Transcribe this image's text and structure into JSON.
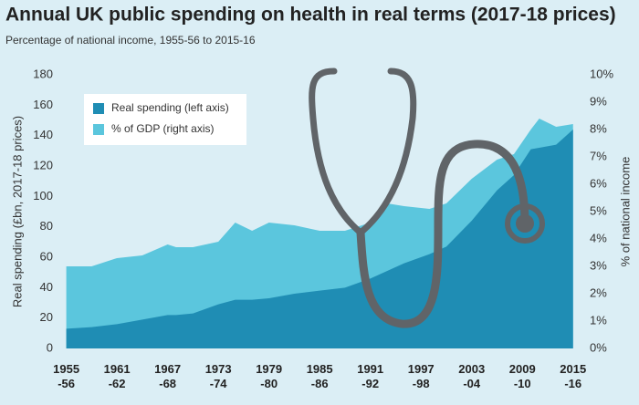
{
  "chart_data": {
    "type": "area",
    "title": "Annual UK public spending on health in real terms (2017-18 prices)",
    "subtitle": "Percentage of national income, 1955-56 to 2015-16",
    "y_label": "Real spending (£bn, 2017-18 prices)",
    "y2_label": "% of national income",
    "x": [
      1955,
      1958,
      1961,
      1964,
      1967,
      1968,
      1970,
      1973,
      1975,
      1977,
      1979,
      1982,
      1985,
      1988,
      1991,
      1993,
      1995,
      1998,
      2000,
      2003,
      2006,
      2008,
      2010,
      2011,
      2013,
      2015
    ],
    "xlim": [
      1954.5,
      2016
    ],
    "xticks": [
      {
        "value": 1955,
        "label": "1955\n-56"
      },
      {
        "value": 1961,
        "label": "1961\n-62"
      },
      {
        "value": 1967,
        "label": "1967\n-68"
      },
      {
        "value": 1973,
        "label": "1973\n-74"
      },
      {
        "value": 1979,
        "label": "1979\n-80"
      },
      {
        "value": 1985,
        "label": "1985\n-86"
      },
      {
        "value": 1991,
        "label": "1991\n-92"
      },
      {
        "value": 1997,
        "label": "1997\n-98"
      },
      {
        "value": 2003,
        "label": "2003\n-04"
      },
      {
        "value": 2009,
        "label": "2009\n-10"
      },
      {
        "value": 2015,
        "label": "2015\n-16"
      }
    ],
    "ylim": [
      0,
      180
    ],
    "yticks": [
      0,
      20,
      40,
      60,
      80,
      100,
      120,
      140,
      160,
      180
    ],
    "y2lim": [
      0,
      10
    ],
    "y2ticks": [
      {
        "value": 0,
        "label": "0%"
      },
      {
        "value": 1,
        "label": "1%"
      },
      {
        "value": 2,
        "label": "2%"
      },
      {
        "value": 3,
        "label": "3%"
      },
      {
        "value": 4,
        "label": "4%"
      },
      {
        "value": 5,
        "label": "5%"
      },
      {
        "value": 6,
        "label": "6%"
      },
      {
        "value": 7,
        "label": "7%"
      },
      {
        "value": 8,
        "label": "8%"
      },
      {
        "value": 9,
        "label": "9%"
      },
      {
        "value": 10,
        "label": "10%"
      }
    ],
    "legend": "upper left",
    "series": [
      {
        "name": "% of GDP (right axis)",
        "color": "#5bc6dd",
        "axis": "y2",
        "values": [
          3.0,
          3.0,
          3.3,
          3.4,
          3.8,
          3.7,
          3.7,
          3.9,
          4.6,
          4.3,
          4.6,
          4.5,
          4.3,
          4.3,
          4.6,
          5.3,
          5.2,
          5.1,
          5.3,
          6.2,
          6.9,
          7.1,
          8.0,
          8.4,
          8.1,
          8.2
        ]
      },
      {
        "name": "Real spending (left axis)",
        "color": "#1f8db4",
        "axis": "y",
        "values": [
          13,
          14,
          16,
          19,
          22,
          22,
          23,
          29,
          32,
          32,
          33,
          36,
          38,
          40,
          46,
          51,
          56,
          62,
          67,
          84,
          104,
          114,
          131,
          132,
          134,
          144
        ]
      }
    ]
  }
}
